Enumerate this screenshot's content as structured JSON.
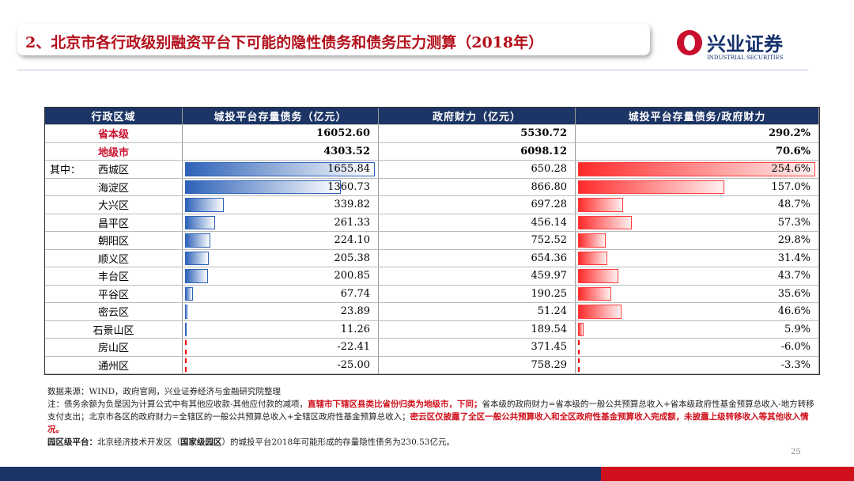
{
  "header": {
    "title": "2、北京市各行政级别融资平台下可能的隐性债务和债务压力测算（2018年）",
    "logo": "兴业证券",
    "logo_en": "INDUSTRIAL SECURITIES"
  },
  "table": {
    "columns": [
      "行政区域",
      "城投平台存量债务（亿元）",
      "政府财力（亿元）",
      "城投平台存量债务/政府财力"
    ],
    "group_label": "其中：",
    "group_row": 2,
    "rows": [
      {
        "cells": [
          "省本级",
          "16052.60",
          "5530.72",
          "290.2%"
        ],
        "highlight": true
      },
      {
        "cells": [
          "地级市",
          "4303.52",
          "6098.12",
          "70.6%"
        ],
        "highlight": true
      },
      {
        "cells": [
          "西城区",
          "1655.84",
          "650.28",
          "254.6%"
        ],
        "highlight": false
      },
      {
        "cells": [
          "海淀区",
          "1360.73",
          "866.80",
          "157.0%"
        ],
        "highlight": false
      },
      {
        "cells": [
          "大兴区",
          "339.82",
          "697.28",
          "48.7%"
        ],
        "highlight": false
      },
      {
        "cells": [
          "昌平区",
          "261.33",
          "456.14",
          "57.3%"
        ],
        "highlight": false
      },
      {
        "cells": [
          "朝阳区",
          "224.10",
          "752.52",
          "29.8%"
        ],
        "highlight": false
      },
      {
        "cells": [
          "顺义区",
          "205.38",
          "654.36",
          "31.4%"
        ],
        "highlight": false
      },
      {
        "cells": [
          "丰台区",
          "200.85",
          "459.97",
          "43.7%"
        ],
        "highlight": false
      },
      {
        "cells": [
          "平谷区",
          "67.74",
          "190.25",
          "35.6%"
        ],
        "highlight": false
      },
      {
        "cells": [
          "密云区",
          "23.89",
          "51.24",
          "46.6%"
        ],
        "highlight": false
      },
      {
        "cells": [
          "石景山区",
          "11.26",
          "189.54",
          "5.9%"
        ],
        "highlight": false
      },
      {
        "cells": [
          "房山区",
          "-22.41",
          "371.45",
          "-6.0%"
        ],
        "highlight": false
      },
      {
        "cells": [
          "通州区",
          "-25.00",
          "758.29",
          "-3.3%"
        ],
        "highlight": false
      }
    ]
  },
  "notes": [
    [
      {
        "text": "数据来源：WIND，政府官网，兴业证券经济与金融研究院整理",
        "style": "normal"
      }
    ],
    [
      {
        "text": "注：债务余额为负是因为计算公式中有其他应收款-其他应付款的减项，",
        "style": "normal"
      },
      {
        "text": "直辖市下辖区县类比省份归类为地级市，下同；",
        "style": "red"
      },
      {
        "text": "省本级的政府财力=省本级的一般公共预算总收入+省本级政府性基金预算总收入-地方转移支付支出；北京市各区的政府财力=全辖区的一般公共预算总收入+全辖区政府性基金预算总收入；",
        "style": "normal"
      },
      {
        "text": "密云区仅披露了全区一般公共预算收入和全区政府性基金预算收入完成额，未披露上级转移收入等其他收入情况。",
        "style": "red"
      }
    ],
    [
      {
        "text": "园区级平台：",
        "style": "bold"
      },
      {
        "text": "北京经济技术开发区（",
        "style": "normal"
      },
      {
        "text": "国家级园区",
        "style": "bold"
      },
      {
        "text": "）的城投平台2018年可能形成的存量隐性债务为230.53亿元。",
        "style": "normal"
      }
    ]
  ],
  "page_number": "25"
}
